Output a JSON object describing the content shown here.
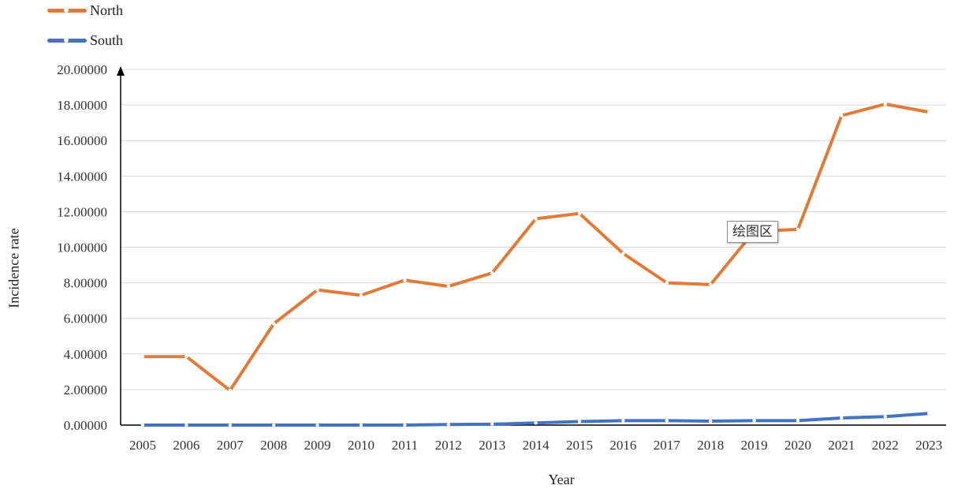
{
  "chart_data": {
    "type": "line",
    "title": "",
    "xlabel": "Year",
    "ylabel": "Incidence rate",
    "categories": [
      "2005",
      "2006",
      "2007",
      "2008",
      "2009",
      "2010",
      "2011",
      "2012",
      "2013",
      "2014",
      "2015",
      "2016",
      "2017",
      "2018",
      "2019",
      "2020",
      "2021",
      "2022",
      "2023"
    ],
    "ylim": [
      0,
      20
    ],
    "yticks": [
      "0.00000",
      "2.00000",
      "4.00000",
      "6.00000",
      "8.00000",
      "10.00000",
      "12.00000",
      "14.00000",
      "16.00000",
      "18.00000",
      "20.00000"
    ],
    "grid": true,
    "legend_position": "top-left",
    "series": [
      {
        "name": "North",
        "color": "#e07b39",
        "values": [
          3.85,
          3.85,
          1.95,
          5.7,
          7.6,
          7.3,
          8.15,
          7.8,
          8.55,
          11.6,
          11.9,
          9.65,
          8.0,
          7.9,
          10.9,
          11.0,
          17.4,
          18.05,
          17.6
        ]
      },
      {
        "name": "South",
        "color": "#4472c4",
        "values": [
          0.0,
          0.0,
          0.0,
          0.0,
          0.0,
          0.0,
          0.0,
          0.03,
          0.05,
          0.12,
          0.2,
          0.25,
          0.25,
          0.22,
          0.25,
          0.25,
          0.4,
          0.48,
          0.65
        ]
      }
    ],
    "annotation": "绘图区"
  }
}
